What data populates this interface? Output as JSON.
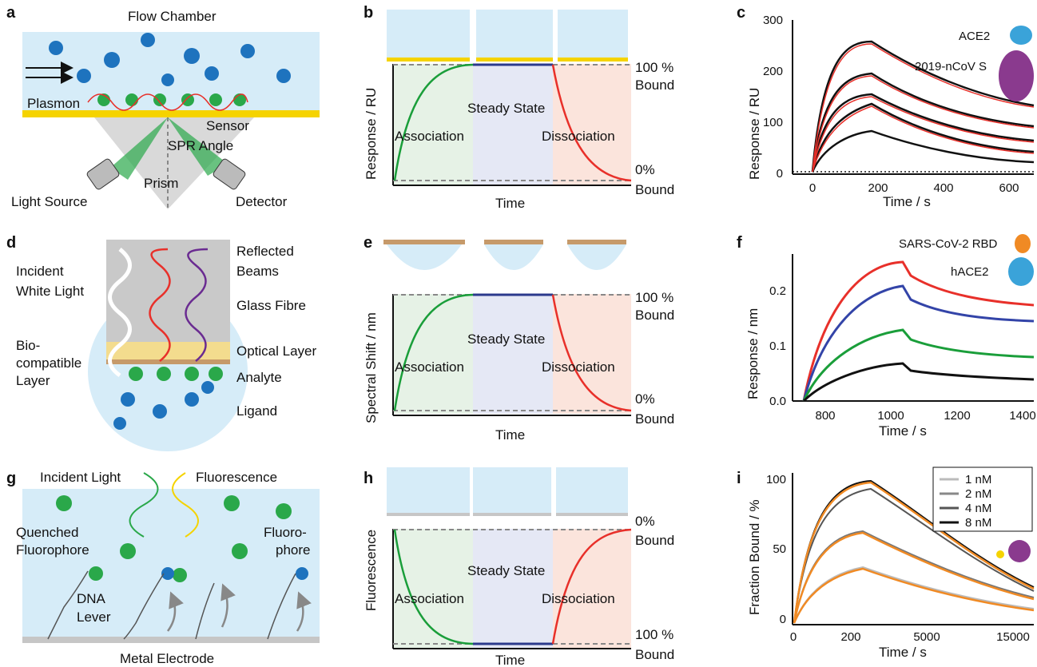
{
  "labels": {
    "a": "a",
    "b": "b",
    "c": "c",
    "d": "d",
    "e": "e",
    "f": "f",
    "g": "g",
    "h": "h",
    "i": "i"
  },
  "a": {
    "title": "Flow Chamber",
    "plasmon": "Plasmon",
    "sensor": "Sensor",
    "spr_angle": "SPR Angle",
    "prism": "Prism",
    "light_source": "Light Source",
    "detector": "Detector"
  },
  "b": {
    "ylabel": "Response / RU",
    "xlabel": "Time",
    "top": "100 %",
    "top2": "Bound",
    "bottom": "0%",
    "bottom2": "Bound",
    "association": "Association",
    "steady": "Steady State",
    "dissociation": "Dissociation"
  },
  "c": {
    "ylabel": "Response  / RU",
    "xlabel": "Time / s",
    "yticks": [
      "0",
      "100",
      "200",
      "300"
    ],
    "xticks": [
      "0",
      "200",
      "400",
      "600"
    ],
    "legend1": "ACE2",
    "legend2": "2019-nCoV S"
  },
  "d": {
    "incident1": "Incident",
    "incident2": "White Light",
    "reflected1": "Reflected",
    "reflected2": "Beams",
    "glass": "Glass Fibre",
    "bio1": "Bio-",
    "bio2": "compatible",
    "bio3": "Layer",
    "optical": "Optical Layer",
    "analyte": "Analyte",
    "ligand": "Ligand"
  },
  "e": {
    "ylabel": "Spectral Shift  / nm",
    "xlabel": "Time",
    "top": "100 %",
    "top2": "Bound",
    "bottom": "0%",
    "bottom2": "Bound",
    "association": "Association",
    "steady": "Steady State",
    "dissociation": "Dissociation"
  },
  "f": {
    "ylabel": "Response  / nm",
    "xlabel": "Time / s",
    "yticks": [
      "0.0",
      "0.1",
      "0.2"
    ],
    "xticks": [
      "800",
      "1000",
      "1200",
      "1400"
    ],
    "legend1": "SARS-CoV-2 RBD",
    "legend2": "hACE2"
  },
  "g": {
    "incident": "Incident Light",
    "fluorescence": "Fluorescence",
    "quenched1": "Quenched",
    "quenched2": "Fluorophore",
    "fluoro1": "Fluoro-",
    "fluoro2": "phore",
    "dna1": "DNA",
    "dna2": "Lever",
    "electrode": "Metal Electrode"
  },
  "h": {
    "ylabel": "Fluorescence",
    "xlabel": "Time",
    "top": "0%",
    "top2": "Bound",
    "bottom": "100 %",
    "bottom2": "Bound",
    "association": "Association",
    "steady": "Steady State",
    "dissociation": "Dissociation"
  },
  "i": {
    "ylabel": "Fraction Bound / %",
    "xlabel": "Time / s",
    "yticks": [
      "0",
      "50",
      "100"
    ],
    "xticks": [
      "0",
      "200",
      "5000",
      "15000"
    ],
    "legend": [
      "1 nM",
      "2 nM",
      "4 nM",
      "8 nM"
    ]
  },
  "colors": {
    "chamber": "#d6ecf8",
    "sensor": "#f5d300",
    "assoc": "#e6f2e6",
    "steady": "#e5e8f5",
    "dissoc": "#fbe4dc",
    "green": "#1a9e3a",
    "red": "#e8302a",
    "navy": "#2b3a8c",
    "orange": "#f08a24"
  },
  "chart_data": [
    {
      "type": "line",
      "panel": "c",
      "xlabel": "Time / s",
      "ylabel": "Response  / RU",
      "xlim": [
        -50,
        680
      ],
      "ylim": [
        0,
        300
      ],
      "series": [
        {
          "values_peak": [
            255,
            195,
            160,
            135,
            80
          ]
        }
      ]
    },
    {
      "type": "line",
      "panel": "f",
      "xlabel": "Time / s",
      "ylabel": "Response  / nm",
      "xlim": [
        720,
        1560
      ],
      "ylim": [
        0,
        0.27
      ],
      "series": [
        {
          "color": "red",
          "peak": 0.255
        },
        {
          "color": "blue",
          "peak": 0.21
        },
        {
          "color": "green",
          "peak": 0.13
        },
        {
          "color": "black",
          "peak": 0.068
        }
      ]
    },
    {
      "type": "line",
      "panel": "i",
      "xlabel": "Time / s",
      "ylabel": "Fraction Bound / %",
      "ylim": [
        0,
        105
      ],
      "series": [
        {
          "name": "1 nM",
          "peak": 42
        },
        {
          "name": "2 nM",
          "peak": 65
        },
        {
          "name": "4 nM",
          "peak": 93
        },
        {
          "name": "8 nM",
          "peak": 97
        }
      ]
    }
  ]
}
